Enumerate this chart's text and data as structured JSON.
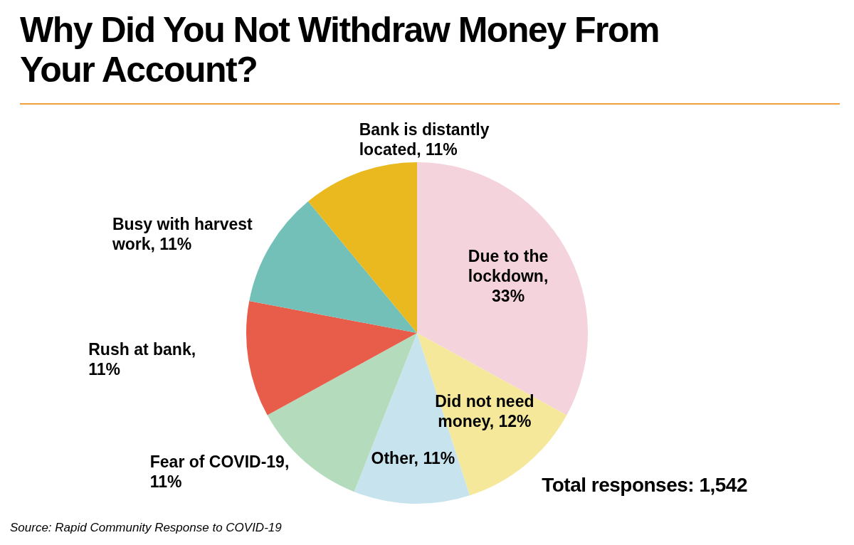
{
  "chart_data": {
    "type": "pie",
    "title": "Why Did You Not Withdraw Money From Your Account?",
    "categories": [
      "Due to the lockdown, 33%",
      "Did not need money, 12%",
      "Other, 11%",
      "Fear of COVID-19, 11%",
      "Rush at bank, 11%",
      "Busy with harvest work, 11%",
      "Bank is distantly located, 11%"
    ],
    "values": [
      33,
      12,
      11,
      11,
      11,
      11,
      11
    ],
    "colors": [
      "#f5d3dc",
      "#f5e89a",
      "#c7e4ee",
      "#b5dbbd",
      "#e85c4a",
      "#72c0b8",
      "#e9b91f"
    ],
    "annotations": [
      "Total responses: 1,542",
      "Source: Rapid Community Response to COVID-19"
    ],
    "legend": false
  }
}
